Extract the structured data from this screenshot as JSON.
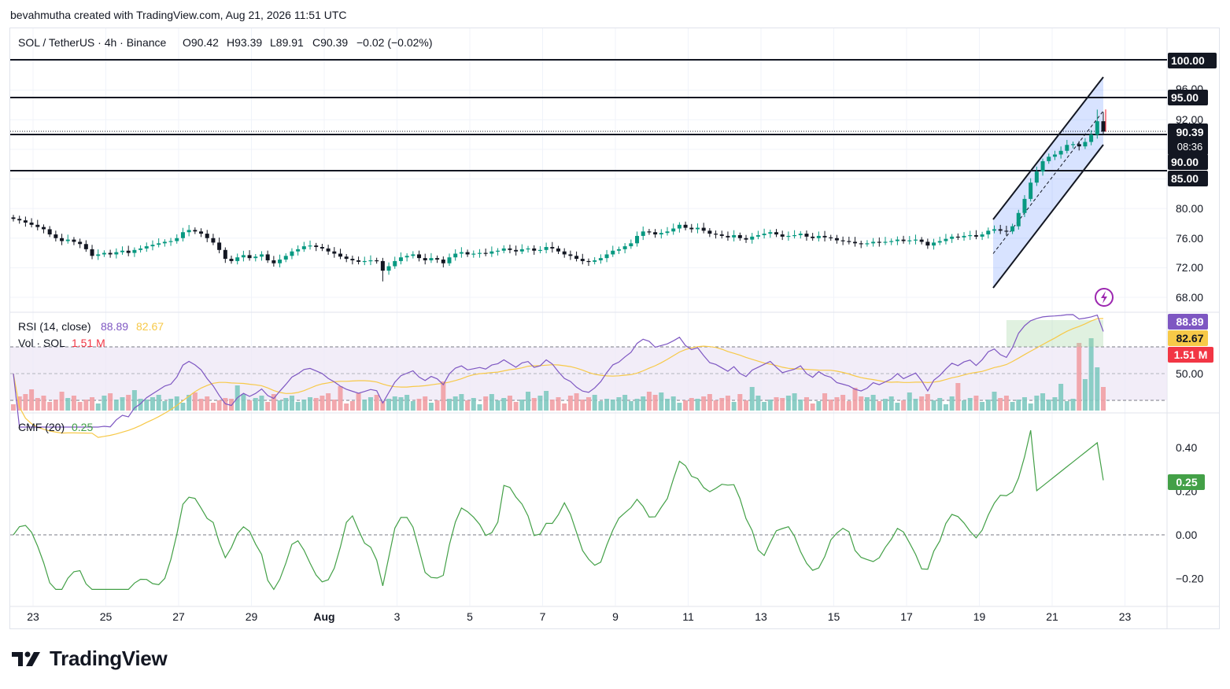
{
  "header": {
    "attribution": "bevahmutha created with TradingView.com, Aug 21, 2026 11:51 UTC"
  },
  "legend": {
    "symbol": "SOL / TetherUS · 4h · Binance",
    "open": "O90.42",
    "high": "H93.39",
    "low": "L89.91",
    "close": "C90.39",
    "change": "−0.02 (−0.02%)"
  },
  "price_axis": {
    "ticks": [
      "96.00",
      "92.00",
      "80.00",
      "76.00",
      "72.00",
      "68.00"
    ],
    "tick_values": [
      96,
      92,
      80,
      76,
      72,
      68
    ],
    "labels": {
      "current": "90.39",
      "countdown": "08:36"
    }
  },
  "levels": [
    {
      "label": "100.00",
      "value": 100
    },
    {
      "label": "95.00",
      "value": 95
    },
    {
      "label": "90.00",
      "value": 90
    },
    {
      "label": "85.00",
      "value": 85
    }
  ],
  "rsi": {
    "title": "RSI (14, close)",
    "value": "88.89",
    "ma_value": "82.67",
    "axis_tick": "50.00",
    "colors": {
      "rsi": "#7e57c2",
      "ma": "#f7c948",
      "band": "#ede7f6"
    }
  },
  "volume": {
    "title": "Vol · SOL",
    "value": "1.51 M",
    "colors": {
      "up": "#80c9c0",
      "down": "#f19ea4"
    }
  },
  "cmf": {
    "title": "CMF (20)",
    "value": "0.25",
    "axis_ticks": [
      "0.40",
      "0.20",
      "0.00",
      "−0.20"
    ],
    "axis_values": [
      0.4,
      0.2,
      0.0,
      -0.2
    ],
    "color": "#43a047"
  },
  "time_axis": {
    "labels": [
      "23",
      "25",
      "27",
      "29",
      "Aug",
      "3",
      "5",
      "7",
      "9",
      "11",
      "13",
      "15",
      "17",
      "19",
      "21",
      "23"
    ]
  },
  "colors": {
    "up": "#089981",
    "down": "#f23645",
    "candle_body_down": "#131722",
    "channel": "#2962ff"
  },
  "footer": {
    "brand": "TradingView"
  },
  "chart_data": {
    "type": "candlestick",
    "symbol": "SOL / TetherUS",
    "interval": "4h",
    "exchange": "Binance",
    "x_range": [
      "Jul 22",
      "Aug 23"
    ],
    "ylim": [
      66,
      101
    ],
    "close_series": [
      78.6,
      78.4,
      78.1,
      77.8,
      77.5,
      77.2,
      76.5,
      76.0,
      75.6,
      75.8,
      75.5,
      75.2,
      74.5,
      73.6,
      73.8,
      74.0,
      73.8,
      74.1,
      74.3,
      74.0,
      74.4,
      74.6,
      74.9,
      75.1,
      75.3,
      75.5,
      75.6,
      76.0,
      76.8,
      77.1,
      76.9,
      76.6,
      76.0,
      75.4,
      74.4,
      73.2,
      72.9,
      73.4,
      73.7,
      73.3,
      73.5,
      73.8,
      73.0,
      72.6,
      73.1,
      73.6,
      74.2,
      74.5,
      74.9,
      75.0,
      74.8,
      74.6,
      74.2,
      73.9,
      73.5,
      73.2,
      73.0,
      72.8,
      72.9,
      73.0,
      72.9,
      71.6,
      72.2,
      72.9,
      73.4,
      73.6,
      73.8,
      73.3,
      73.0,
      73.3,
      73.1,
      72.6,
      73.4,
      73.9,
      74.1,
      73.8,
      73.9,
      74.0,
      73.9,
      74.2,
      74.3,
      74.6,
      74.4,
      74.2,
      74.5,
      74.6,
      74.3,
      74.4,
      74.8,
      74.6,
      74.2,
      73.8,
      73.6,
      73.2,
      72.9,
      72.8,
      73.0,
      73.3,
      73.8,
      74.3,
      74.5,
      74.9,
      75.3,
      76.3,
      76.9,
      76.8,
      76.5,
      76.7,
      76.9,
      77.3,
      77.8,
      77.4,
      77.2,
      77.4,
      77.0,
      76.6,
      76.5,
      76.3,
      76.1,
      76.4,
      76.0,
      75.8,
      76.2,
      76.4,
      76.6,
      76.8,
      76.5,
      76.2,
      76.3,
      76.4,
      76.6,
      76.2,
      76.0,
      76.3,
      76.1,
      76.0,
      75.7,
      75.6,
      75.5,
      75.3,
      75.2,
      75.3,
      75.5,
      75.4,
      75.5,
      75.6,
      75.8,
      75.6,
      75.7,
      75.8,
      75.5,
      75.0,
      75.4,
      75.6,
      75.9,
      76.2,
      76.1,
      76.3,
      76.4,
      76.2,
      76.5,
      77.0,
      77.2,
      77.0,
      76.9,
      77.6,
      79.4,
      81.3,
      83.5,
      85.0,
      86.4,
      87.0,
      87.3,
      87.8,
      88.6,
      88.7,
      88.4,
      89.0,
      90.0,
      91.8,
      90.39
    ],
    "channel": {
      "upper": [
        [
          78.3,
          0
        ],
        [
          97.6,
          1
        ]
      ],
      "lower": [
        [
          69.4,
          0
        ],
        [
          88.6,
          1
        ]
      ],
      "start": "Aug 18",
      "end": "Aug 21"
    },
    "rsi": {
      "last": 88.89,
      "ma_last": 82.67,
      "bands": [
        70,
        50,
        30
      ]
    },
    "volume": {
      "last": "1.51 M"
    },
    "cmf": {
      "last": 0.25,
      "range": [
        -0.25,
        0.48
      ]
    }
  }
}
